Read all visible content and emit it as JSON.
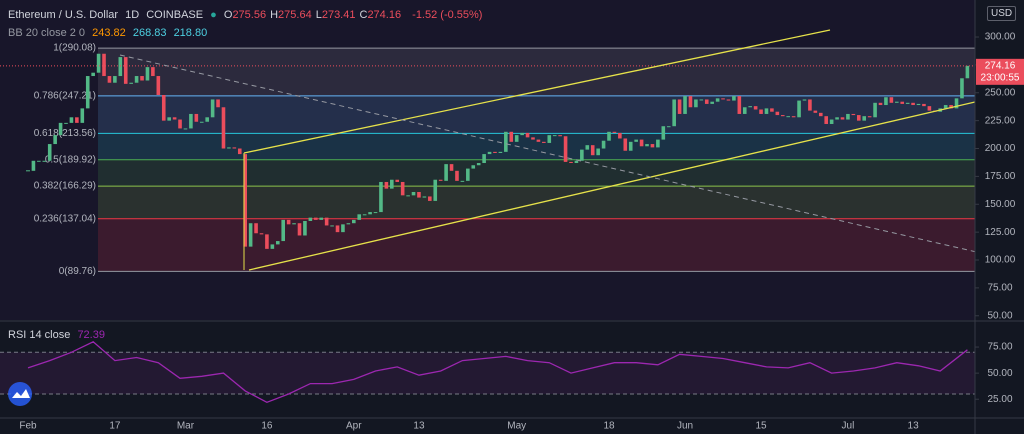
{
  "header": {
    "symbol": "Ethereum / U.S. Dollar",
    "interval": "1D",
    "exchange": "COINBASE",
    "ohlc": [
      {
        "label": "O",
        "value": "275.56"
      },
      {
        "label": "H",
        "value": "275.64"
      },
      {
        "label": "L",
        "value": "273.41"
      },
      {
        "label": "C",
        "value": "274.16"
      }
    ],
    "change": "-1.52 (-0.55%)",
    "bb_label": "BB 20 close 2 0",
    "bb_values": [
      "243.82",
      "268.83",
      "218.80"
    ],
    "currency": "USD",
    "countdown": "23:00:55",
    "rsi_label": "RSI 14 close",
    "rsi_value": "72.39"
  },
  "chart_data": [
    {
      "type": "candlestick",
      "up_color": "#53b987",
      "down_color": "#eb4d5c",
      "categories": [
        "Feb",
        null,
        null,
        null,
        null,
        null,
        null,
        null,
        null,
        null,
        null,
        null,
        null,
        null,
        null,
        null,
        "17",
        null,
        null,
        null,
        null,
        null,
        null,
        null,
        null,
        null,
        null,
        null,
        null,
        "Mar",
        null,
        null,
        null,
        null,
        null,
        null,
        null,
        null,
        null,
        null,
        null,
        null,
        null,
        null,
        "16",
        null,
        null,
        null,
        null,
        null,
        null,
        null,
        null,
        null,
        null,
        null,
        null,
        null,
        null,
        null,
        "Apr",
        null,
        null,
        null,
        null,
        null,
        null,
        null,
        null,
        null,
        null,
        null,
        "13",
        null,
        null,
        null,
        null,
        null,
        null,
        null,
        null,
        null,
        null,
        null,
        null,
        null,
        null,
        null,
        null,
        null,
        "May",
        null,
        null,
        null,
        null,
        null,
        null,
        null,
        null,
        null,
        null,
        null,
        null,
        null,
        null,
        null,
        null,
        "18",
        null,
        null,
        null,
        null,
        null,
        null,
        null,
        null,
        null,
        null,
        null,
        null,
        null,
        "Jun",
        null,
        null,
        null,
        null,
        null,
        null,
        null,
        null,
        null,
        null,
        null,
        null,
        null,
        "15",
        null,
        null,
        null,
        null,
        null,
        null,
        null,
        null,
        null,
        null,
        null,
        null,
        null,
        null,
        null,
        "Jul",
        null,
        null,
        null,
        null,
        null,
        null,
        null,
        null,
        null,
        null,
        null,
        "13",
        null,
        null,
        null,
        null,
        null,
        null,
        null,
        null,
        null,
        null
      ],
      "values": [
        180,
        189,
        189,
        189,
        204,
        212,
        223,
        223,
        228,
        223,
        236,
        265,
        268,
        285,
        265,
        259,
        265,
        282,
        258,
        259,
        265,
        261,
        273,
        265,
        248,
        225,
        228,
        226,
        218,
        218,
        231,
        224,
        224,
        228,
        244,
        237,
        200,
        201,
        200,
        195,
        112,
        133,
        124,
        123,
        110,
        114,
        117,
        136,
        132,
        133,
        122,
        135,
        138,
        136,
        138,
        131,
        131,
        125,
        132,
        133,
        136,
        141,
        141,
        143,
        143,
        170,
        164,
        172,
        170,
        158,
        158,
        161,
        156,
        157,
        153,
        172,
        171,
        186,
        180,
        171,
        171,
        182,
        185,
        187,
        195,
        197,
        196,
        197,
        215,
        206,
        212,
        214,
        210,
        208,
        206,
        205,
        212,
        212,
        211,
        188,
        187,
        189,
        199,
        203,
        194,
        200,
        207,
        215,
        214,
        209,
        198,
        206,
        208,
        202,
        204,
        201,
        208,
        220,
        220,
        244,
        231,
        247,
        237,
        244,
        244,
        240,
        242,
        245,
        244,
        243,
        247,
        231,
        237,
        238,
        235,
        231,
        236,
        233,
        230,
        229,
        229,
        228,
        243,
        244,
        234,
        232,
        229,
        222,
        226,
        228,
        226,
        231,
        230,
        225,
        229,
        228,
        241,
        239,
        246,
        241,
        242,
        240,
        241,
        239,
        240,
        238,
        234,
        233,
        236,
        239,
        236,
        245,
        263,
        274.16
      ],
      "ylim": [
        46.2,
        333.2
      ],
      "yticks": [
        {
          "value": 300,
          "label": "300.00"
        },
        {
          "value": 275,
          "label": "275.00"
        },
        {
          "value": 250,
          "label": "250.00"
        },
        {
          "value": 225,
          "label": "225.00"
        },
        {
          "value": 200,
          "label": "200.00"
        },
        {
          "value": 175,
          "label": "175.00"
        },
        {
          "value": 150,
          "label": "150.00"
        },
        {
          "value": 125,
          "label": "125.00"
        },
        {
          "value": 100,
          "label": "100.00"
        },
        {
          "value": 75,
          "label": "75.00"
        },
        {
          "value": 50,
          "label": "50.00"
        }
      ],
      "fib_levels": [
        {
          "label": "1(290.08)",
          "value": 290.08,
          "color": "#9598a1"
        },
        {
          "label": "0.786(247.21)",
          "value": 247.21,
          "color": "#64b5f6"
        },
        {
          "label": "0.618(213.56)",
          "value": 213.56,
          "color": "#26c6da"
        },
        {
          "label": "0.5(189.92)",
          "value": 189.92,
          "color": "#4caf50"
        },
        {
          "label": "0.382(166.29)",
          "value": 166.29,
          "color": "#8bc34a"
        },
        {
          "label": "0.236(137.04)",
          "value": 137.04,
          "color": "#f23645"
        },
        {
          "label": "0(89.76)",
          "value": 89.76,
          "color": "#9598a1"
        }
      ]
    },
    {
      "type": "line",
      "color": "#9c27b0",
      "x": [
        0,
        4,
        8,
        12,
        16,
        20,
        24,
        28,
        32,
        36,
        40,
        44,
        48,
        52,
        56,
        60,
        64,
        68,
        72,
        76,
        80,
        84,
        88,
        92,
        96,
        100,
        104,
        108,
        112,
        116,
        120,
        124,
        128,
        132,
        136,
        140,
        144,
        148,
        152,
        156,
        160,
        164,
        168,
        173
      ],
      "values": [
        55,
        62,
        70,
        80,
        62,
        65,
        60,
        45,
        47,
        50,
        33,
        22,
        30,
        40,
        40,
        44,
        52,
        56,
        48,
        52,
        62,
        64,
        66,
        62,
        60,
        50,
        55,
        60,
        60,
        58,
        68,
        66,
        64,
        60,
        56,
        55,
        60,
        50,
        52,
        55,
        60,
        57,
        52,
        72.39
      ],
      "ylim": [
        7,
        99
      ],
      "bands": [
        30,
        70
      ],
      "yticks": [
        {
          "value": 75,
          "label": "75.00"
        },
        {
          "value": 50,
          "label": "50.00"
        },
        {
          "value": 25,
          "label": "25.00"
        }
      ]
    }
  ]
}
